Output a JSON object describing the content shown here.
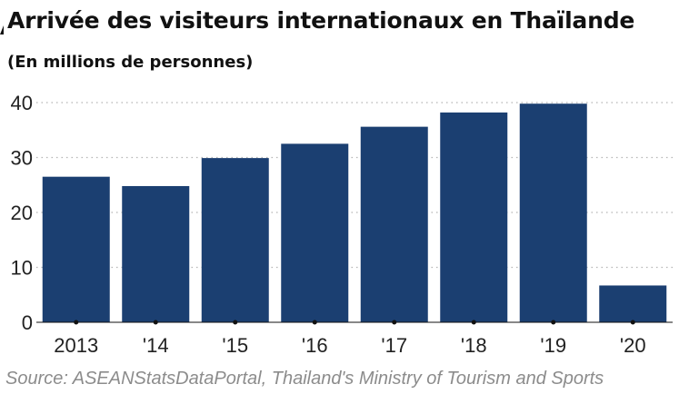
{
  "chart_data": {
    "type": "bar",
    "title": "Arrivée des visiteurs internationaux en Thaïlande",
    "subtitle": "(En millions de personnes)",
    "categories": [
      "2013",
      "'14",
      "'15",
      "'16",
      "'17",
      "'18",
      "'19",
      "'20"
    ],
    "values": [
      26.5,
      24.8,
      29.9,
      32.5,
      35.6,
      38.2,
      39.8,
      6.7
    ],
    "ylim": [
      0,
      40
    ],
    "yticks": [
      "0",
      "10",
      "20",
      "30",
      "40"
    ],
    "xlabel": "",
    "ylabel": "",
    "grid": "horizontal dotted",
    "bar_color": "#1b3f71"
  },
  "source": "Source: ASEANStatsDataPortal, Thailand's Ministry of Tourism and Sports"
}
